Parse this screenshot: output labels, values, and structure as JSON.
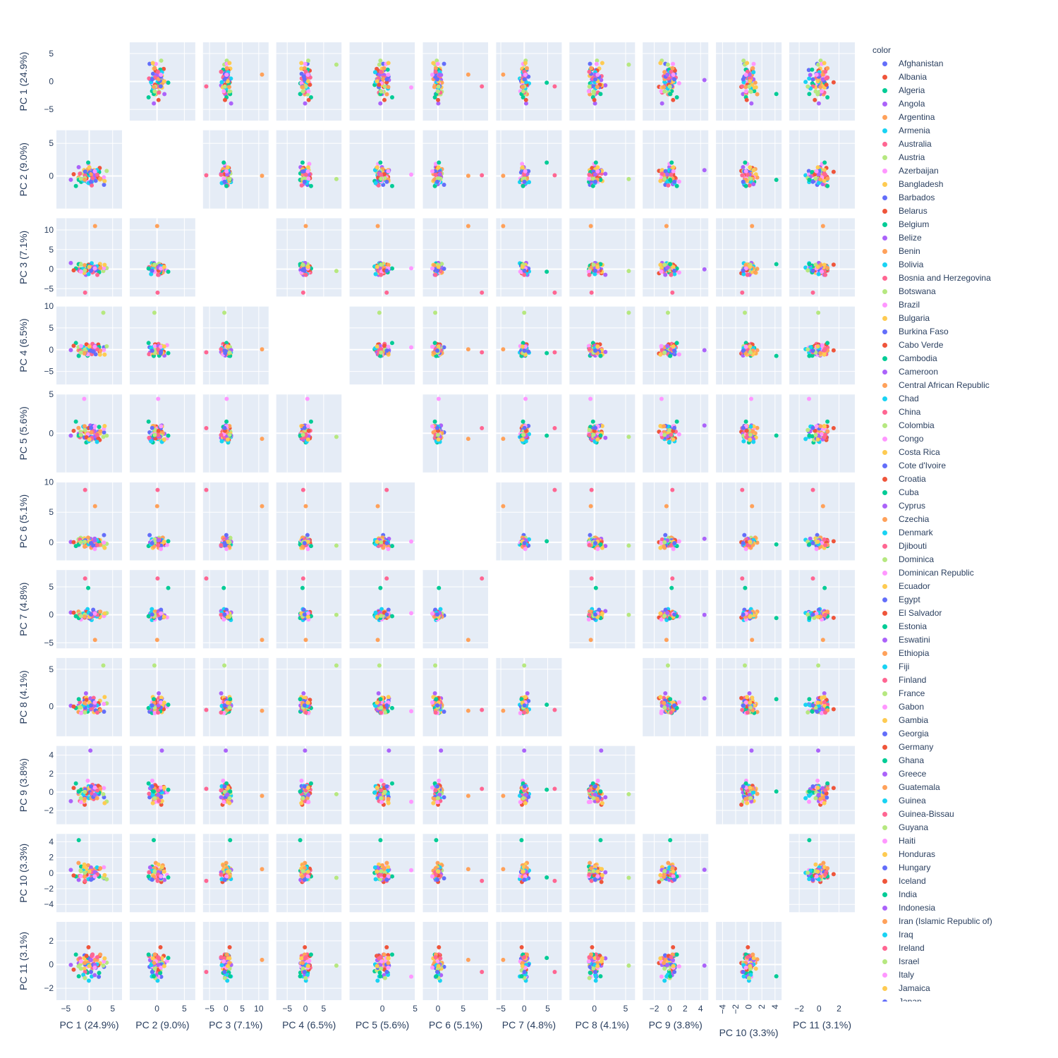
{
  "chart_data": {
    "type": "scatter",
    "subtype": "scatter-matrix",
    "dimensions": [
      "PC 1 (24.9%)",
      "PC 2 (9.0%)",
      "PC 3 (7.1%)",
      "PC 4 (6.5%)",
      "PC 5 (5.6%)",
      "PC 6 (5.1%)",
      "PC 7 (4.8%)",
      "PC 8 (4.1%)",
      "PC 9 (3.8%)",
      "PC 10 (3.3%)",
      "PC 11 (3.1%)"
    ],
    "ranges": [
      [
        -7,
        7
      ],
      [
        -5,
        7
      ],
      [
        -7,
        13
      ],
      [
        -8,
        10
      ],
      [
        -5,
        5
      ],
      [
        -3,
        10
      ],
      [
        -6,
        8
      ],
      [
        -4,
        6.5
      ],
      [
        -3.5,
        5
      ],
      [
        -5,
        5
      ],
      [
        -3,
        3.6
      ]
    ],
    "ticks": [
      [
        -5,
        0,
        5
      ],
      [
        0,
        5
      ],
      [
        -5,
        0,
        5,
        10
      ],
      [
        -5,
        0,
        5,
        10
      ],
      [
        0,
        5
      ],
      [
        0,
        5,
        10
      ],
      [
        -5,
        0,
        5
      ],
      [
        0,
        5
      ],
      [
        -2,
        0,
        2,
        4
      ],
      [
        -4,
        -2,
        0,
        2,
        4
      ],
      [
        -2,
        0,
        2
      ]
    ],
    "x_tick_labels": [
      [
        "−5",
        "0",
        "5"
      ],
      [
        "0",
        "5"
      ],
      [
        "−5",
        "0",
        "5",
        "10"
      ],
      [
        "−5",
        "0",
        "5"
      ],
      [
        "0",
        "5"
      ],
      [
        "0",
        "5"
      ],
      [
        "−5",
        "0",
        "5"
      ],
      [
        "0",
        "5"
      ],
      [
        "−2",
        "0",
        "2",
        "4"
      ],
      [
        "−4",
        "−2",
        "0",
        "2",
        "4"
      ],
      [
        "−2",
        "0",
        "2"
      ]
    ],
    "y_tick_labels": [
      [
        "−5",
        "0",
        "5"
      ],
      [
        "0",
        "5"
      ],
      [
        "−5",
        "0",
        "5",
        "10"
      ],
      [
        "−5",
        "0",
        "5",
        "10"
      ],
      [
        "0",
        "5"
      ],
      [
        "0",
        "5",
        "10"
      ],
      [
        "−5",
        "0",
        "5"
      ],
      [
        "0",
        "5"
      ],
      [
        "−2",
        "0",
        "2",
        "4"
      ],
      [
        "−4",
        "−2",
        "0",
        "2",
        "4"
      ],
      [
        "−2",
        "0",
        "2"
      ]
    ],
    "diagonal_visible": false,
    "grid": true,
    "legend_position": "right",
    "legend_title": "color",
    "palette": [
      "#636efa",
      "#EF553B",
      "#00cc96",
      "#ab63fa",
      "#FFA15A",
      "#19d3f3",
      "#FF6692",
      "#B6E880",
      "#FF97FF",
      "#FECB52"
    ],
    "countries": [
      "Afghanistan",
      "Albania",
      "Algeria",
      "Angola",
      "Argentina",
      "Armenia",
      "Australia",
      "Austria",
      "Azerbaijan",
      "Bangladesh",
      "Barbados",
      "Belarus",
      "Belgium",
      "Belize",
      "Benin",
      "Bolivia",
      "Bosnia and Herzegovina",
      "Botswana",
      "Brazil",
      "Bulgaria",
      "Burkina Faso",
      "Cabo Verde",
      "Cambodia",
      "Cameroon",
      "Central African Republic",
      "Chad",
      "China",
      "Colombia",
      "Congo",
      "Costa Rica",
      "Cote d'Ivoire",
      "Croatia",
      "Cuba",
      "Cyprus",
      "Czechia",
      "Denmark",
      "Djibouti",
      "Dominica",
      "Dominican Republic",
      "Ecuador",
      "Egypt",
      "El Salvador",
      "Estonia",
      "Eswatini",
      "Ethiopia",
      "Fiji",
      "Finland",
      "France",
      "Gabon",
      "Gambia",
      "Georgia",
      "Germany",
      "Ghana",
      "Greece",
      "Guatemala",
      "Guinea",
      "Guinea-Bissau",
      "Guyana",
      "Haiti",
      "Honduras",
      "Hungary",
      "Iceland",
      "India",
      "Indonesia",
      "Iran (Islamic Republic of)",
      "Iraq",
      "Ireland",
      "Israel",
      "Italy",
      "Jamaica",
      "Japan"
    ]
  }
}
